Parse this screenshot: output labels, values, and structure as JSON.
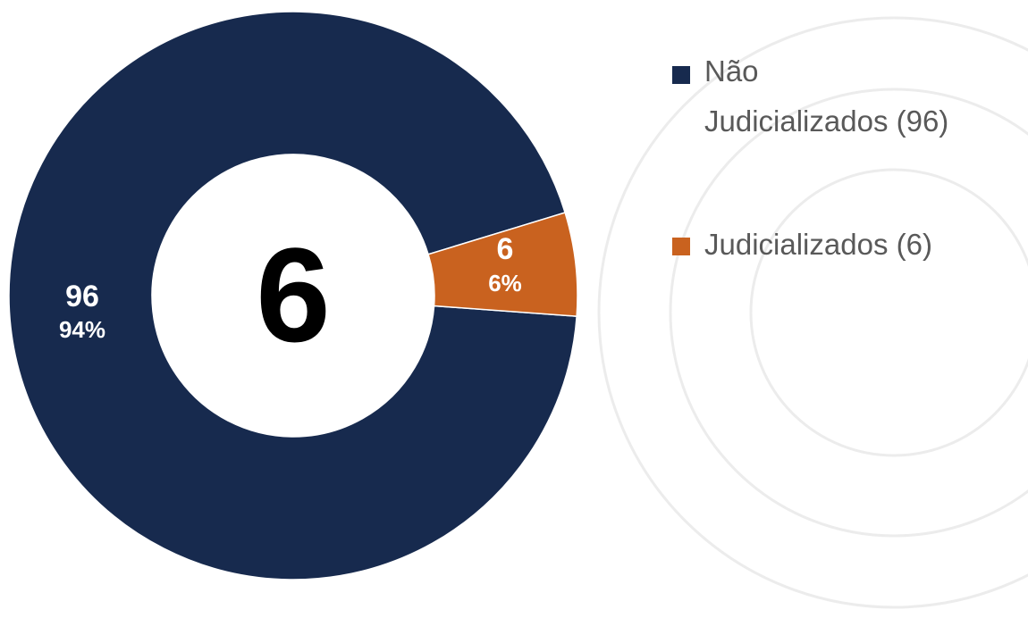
{
  "chart_data": {
    "type": "pie",
    "donut": true,
    "center_label": "6",
    "categories": [
      "Não Judicializados",
      "Judicializados"
    ],
    "values": [
      96,
      6
    ],
    "percent_labels": [
      "94%",
      "6%"
    ],
    "value_labels": [
      "96",
      "6"
    ],
    "legend": [
      "Não Judicializados (96)",
      "Judicializados (6)"
    ],
    "legend_lines": [
      [
        "Não",
        "Judicializados (96)"
      ],
      [
        "Judicializados (6)"
      ]
    ],
    "legend_position": "right",
    "colors": [
      "#172a4e",
      "#c9621f"
    ]
  }
}
